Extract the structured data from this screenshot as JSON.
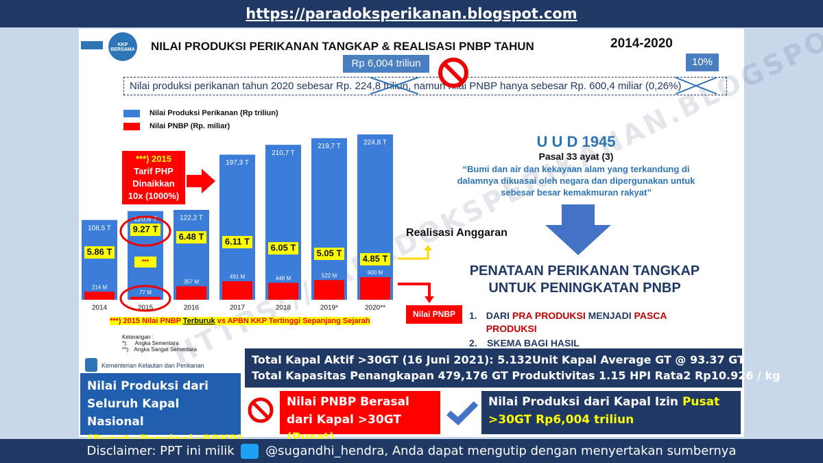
{
  "header": {
    "url": "https://paradoksperikanan.blogspot.com"
  },
  "logo": "KKP BERSAMA",
  "title": {
    "text": "NILAI PRODUKSI PERIKANAN TANGKAP & REALISASI PNBP TAHUN",
    "years": "2014-2020"
  },
  "corrections": {
    "production": "Rp 6,004 triliun",
    "percent": "10%"
  },
  "statement": "Nilai produksi perikanan tahun 2020 sebesar Rp. 224,8 triliun, namun nilai PNBP hanya sebesar Rp. 600,4 miliar (0,26%)",
  "chart_data": {
    "type": "bar",
    "categories": [
      "2014",
      "2015",
      "2016",
      "2017",
      "2018",
      "2019*",
      "2020**"
    ],
    "series": [
      {
        "name": "Nilai Produksi Perikanan (Rp triliun)",
        "color": "#3c7dd9",
        "values": [
          108.5,
          120.6,
          122.2,
          197.3,
          210.7,
          219.7,
          224.8
        ],
        "value_labels": [
          "108,5 T",
          "120,6 T",
          "122,2 T",
          "197,3 T",
          "210,7 T",
          "219,7 T",
          "224,8 T"
        ]
      },
      {
        "name": "Nilai PNBP (Rp. miliar)",
        "color": "#ff0000",
        "values": [
          214,
          77,
          357,
          491,
          448,
          522,
          600
        ],
        "value_labels": [
          "214 M",
          "77 M",
          "357 M",
          "491 M",
          "448 M",
          "522 M",
          "600 M"
        ]
      }
    ],
    "ratio_labels": [
      "5.86 T",
      "9.27 T",
      "6.48 T",
      "6.11 T",
      "6.05 T",
      "5.05 T",
      "4.85 T"
    ]
  },
  "notes": {
    "tariff": [
      "***) 2015",
      "Tarif PHP",
      "Dinaikkan",
      "10x (1000%)"
    ],
    "stars": "***",
    "realisasi": "Realisasi Anggaran",
    "pnbp_tag": "Nilai PNBP"
  },
  "footnote": {
    "main": "***) 2015 Nilai PNBP ",
    "emph": "Terburuk",
    "rest": " vs APBN KKP Tertinggi Sepanjang Sejarah",
    "legend_title": "Keterangan :",
    "items": [
      "*):     Angka Sementara",
      "**):   Angka Sangat Sementara"
    ]
  },
  "uud": {
    "title": "U U D 1945",
    "article": "Pasal 33 ayat (3)",
    "quote": "“Bumi dan air dan kekayaan alam yang terkandung di dalamnya dikuasai oleh negara dan dipergunakan untuk sebesar besar kemakmuran rakyat”"
  },
  "plan": {
    "title": "PENATAAN PERIKANAN TANGKAP UNTUK PENINGKATAN PNBP",
    "items": [
      {
        "number": "1.",
        "parts": [
          "DARI ",
          "PRA PRODUKSI",
          " MENJADI ",
          "PASCA PRODUKSI"
        ]
      },
      {
        "number": "2.",
        "parts": [
          "SKEMA BAGI HASIL"
        ]
      }
    ]
  },
  "fleet": [
    "Total Kapal Aktif >30GT (16 Juni 2021): 5.132Unit Kapal Average GT @ 93.37 GT",
    "Total Kapasitas Penangkapan 479,176 GT Produktivitas 1.15 HPI Rata2 Rp10.926 / kg"
  ],
  "boxes": {
    "ministry": "Kementerian Kelautan dan Perikanan",
    "national": {
      "text": "Nilai Produksi dari Seluruh Kapal Nasional",
      "emph": "(Pusat+Provinsi+BPKP)"
    },
    "pnbp": {
      "text": "Nilai PNBP Berasal dari Kapal >30GT",
      "emph": "(Pusat)"
    },
    "central": {
      "text": "Nilai Produksi dari Kapal Izin ",
      "emph": "Pusat",
      "rest": ">30GT  Rp6,004 triliun"
    }
  },
  "watermark": "HTTPS://PARADOKSPERIKANAN.BLOGSPOT.COM",
  "footer": {
    "left": "Disclaimer: PPT ini milik",
    "right": "@sugandhi_hendra, Anda dapat mengutip dengan menyertakan sumbernya"
  }
}
